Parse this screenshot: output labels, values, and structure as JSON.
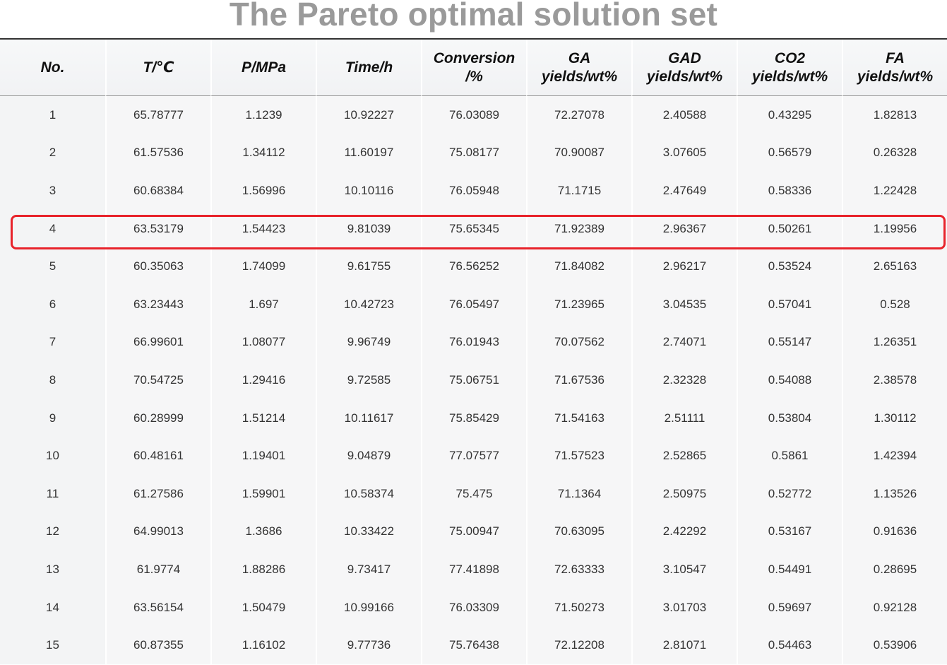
{
  "title": "The Pareto optimal solution set",
  "chart_data": {
    "type": "table",
    "title": "The Pareto optimal solution set",
    "columns": [
      [
        "No."
      ],
      [
        "T/℃"
      ],
      [
        "P/MPa"
      ],
      [
        "Time/h"
      ],
      [
        "Conversion",
        "/%"
      ],
      [
        "GA",
        "yields/wt%"
      ],
      [
        "GAD",
        "yields/wt%"
      ],
      [
        "CO2",
        "yields/wt%"
      ],
      [
        "FA",
        "yields/wt%"
      ]
    ],
    "rows": [
      [
        "1",
        "65.78777",
        "1.1239",
        "10.92227",
        "76.03089",
        "72.27078",
        "2.40588",
        "0.43295",
        "1.82813"
      ],
      [
        "2",
        "61.57536",
        "1.34112",
        "11.60197",
        "75.08177",
        "70.90087",
        "3.07605",
        "0.56579",
        "0.26328"
      ],
      [
        "3",
        "60.68384",
        "1.56996",
        "10.10116",
        "76.05948",
        "71.1715",
        "2.47649",
        "0.58336",
        "1.22428"
      ],
      [
        "4",
        "63.53179",
        "1.54423",
        "9.81039",
        "75.65345",
        "71.92389",
        "2.96367",
        "0.50261",
        "1.19956"
      ],
      [
        "5",
        "60.35063",
        "1.74099",
        "9.61755",
        "76.56252",
        "71.84082",
        "2.96217",
        "0.53524",
        "2.65163"
      ],
      [
        "6",
        "63.23443",
        "1.697",
        "10.42723",
        "76.05497",
        "71.23965",
        "3.04535",
        "0.57041",
        "0.528"
      ],
      [
        "7",
        "66.99601",
        "1.08077",
        "9.96749",
        "76.01943",
        "70.07562",
        "2.74071",
        "0.55147",
        "1.26351"
      ],
      [
        "8",
        "70.54725",
        "1.29416",
        "9.72585",
        "75.06751",
        "71.67536",
        "2.32328",
        "0.54088",
        "2.38578"
      ],
      [
        "9",
        "60.28999",
        "1.51214",
        "10.11617",
        "75.85429",
        "71.54163",
        "2.51111",
        "0.53804",
        "1.30112"
      ],
      [
        "10",
        "60.48161",
        "1.19401",
        "9.04879",
        "77.07577",
        "71.57523",
        "2.52865",
        "0.5861",
        "1.42394"
      ],
      [
        "11",
        "61.27586",
        "1.59901",
        "10.58374",
        "75.475",
        "71.1364",
        "2.50975",
        "0.52772",
        "1.13526"
      ],
      [
        "12",
        "64.99013",
        "1.3686",
        "10.33422",
        "75.00947",
        "70.63095",
        "2.42292",
        "0.53167",
        "0.91636"
      ],
      [
        "13",
        "61.9774",
        "1.88286",
        "9.73417",
        "77.41898",
        "72.63333",
        "3.10547",
        "0.54491",
        "0.28695"
      ],
      [
        "14",
        "63.56154",
        "1.50479",
        "10.99166",
        "76.03309",
        "71.50273",
        "3.01703",
        "0.59697",
        "0.92128"
      ],
      [
        "15",
        "60.87355",
        "1.16102",
        "9.77736",
        "75.76438",
        "72.12208",
        "2.81071",
        "0.54463",
        "0.53906"
      ]
    ],
    "highlighted_row": "4"
  },
  "colors": {
    "title": "#9a9a9a",
    "highlight_border": "#e8232b",
    "cell_background": "#f6f6f7",
    "rule": "#333333"
  }
}
